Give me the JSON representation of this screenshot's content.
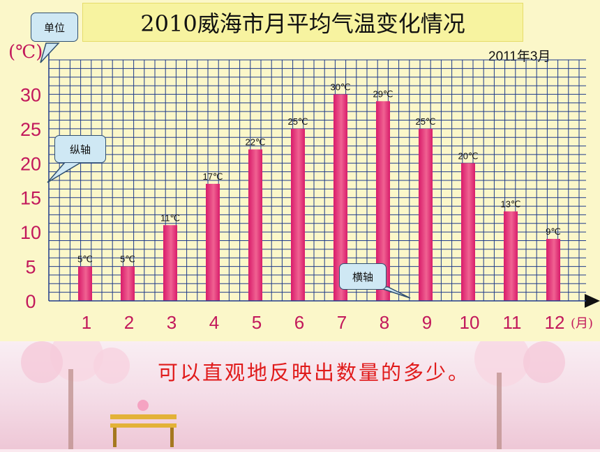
{
  "slide": {
    "date_note": "2011年3月",
    "caption": "可以直观地反映出数量的多少。",
    "callouts": {
      "unit": "单位",
      "y_axis": "纵轴",
      "x_axis": "横轴"
    }
  },
  "chart_data": {
    "type": "bar",
    "title": "2010威海市月平均气温变化情况",
    "ylabel": "(℃)",
    "xlabel": "(月)",
    "categories": [
      "1",
      "2",
      "3",
      "4",
      "5",
      "6",
      "7",
      "8",
      "9",
      "10",
      "11",
      "12"
    ],
    "values": [
      5,
      5,
      11,
      17,
      22,
      25,
      30,
      29,
      25,
      20,
      13,
      9
    ],
    "data_labels": [
      "5℃",
      "5℃",
      "11℃",
      "17℃",
      "22℃",
      "25℃",
      "30℃",
      "29℃",
      "25℃",
      "20℃",
      "13℃",
      "9℃"
    ],
    "yticks": [
      0,
      5,
      10,
      15,
      20,
      25,
      30
    ],
    "ylim": [
      0,
      35
    ],
    "grid": true,
    "colors": {
      "bar": "#d81b6a",
      "bar_light": "#f06292",
      "grid": "#1e3a8a",
      "axis_labels": "#c2185b"
    }
  }
}
